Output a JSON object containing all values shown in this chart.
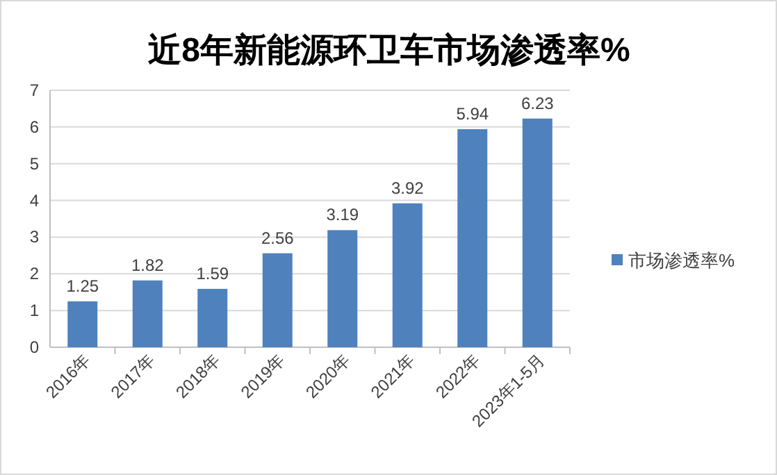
{
  "chart_data": {
    "type": "bar",
    "title": "近8年新能源环卫车市场渗透率%",
    "categories": [
      "2016年",
      "2017年",
      "2018年",
      "2019年",
      "2020年",
      "2021年",
      "2022年",
      "2023年1-5月"
    ],
    "series": [
      {
        "name": "市场渗透率%",
        "color": "#4f81bd",
        "values": [
          1.25,
          1.82,
          1.59,
          2.56,
          3.19,
          3.92,
          5.94,
          6.23
        ]
      }
    ],
    "ylim": [
      0,
      7
    ],
    "yticks": [
      0,
      1,
      2,
      3,
      4,
      5,
      6,
      7
    ],
    "grid": "y",
    "legend": "right",
    "data_labels": true
  }
}
